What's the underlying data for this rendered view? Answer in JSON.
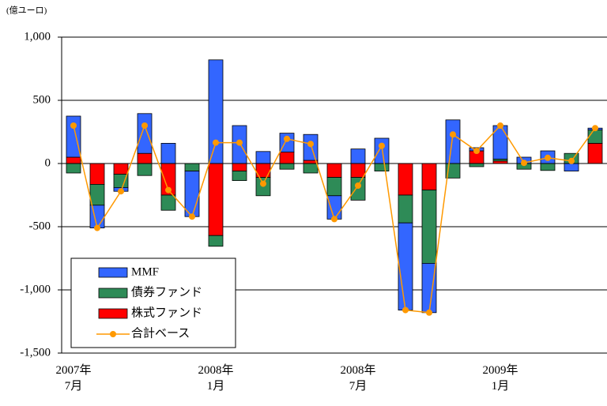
{
  "chart_data": {
    "type": "bar",
    "unit_label": "(億ユーロ)",
    "categories": [
      "2007年\n7月",
      null,
      null,
      null,
      null,
      null,
      "2008年\n1月",
      null,
      null,
      null,
      null,
      null,
      "2008年\n7月",
      null,
      null,
      null,
      null,
      null,
      "2009年\n1月",
      null,
      null,
      null,
      null
    ],
    "series": [
      {
        "name": "MMF",
        "color": "#3366ff",
        "values": [
          325,
          -180,
          -30,
          315,
          160,
          -360,
          820,
          300,
          95,
          150,
          205,
          -185,
          115,
          200,
          -690,
          -390,
          345,
          25,
          265,
          50,
          100,
          -60,
          15
        ]
      },
      {
        "name": "債券ファンド",
        "color": "#2e8b57",
        "values": [
          -75,
          -165,
          -105,
          -95,
          -120,
          -60,
          -85,
          -75,
          -145,
          -45,
          -75,
          -145,
          -180,
          -60,
          -220,
          -580,
          -115,
          -25,
          15,
          -45,
          -55,
          80,
          105
        ]
      },
      {
        "name": "株式ファンド",
        "color": "#ff0000",
        "values": [
          50,
          -165,
          -85,
          80,
          -250,
          0,
          -570,
          -60,
          -110,
          90,
          25,
          -110,
          -110,
          0,
          -250,
          -210,
          0,
          100,
          20,
          0,
          0,
          0,
          160
        ]
      },
      {
        "name": "合計ベース",
        "color": "#ff9900",
        "type": "line",
        "values": [
          300,
          -510,
          -220,
          300,
          -210,
          -420,
          165,
          165,
          -160,
          195,
          155,
          -440,
          -175,
          140,
          -1160,
          -1180,
          230,
          100,
          300,
          5,
          45,
          20,
          280
        ]
      }
    ],
    "ylim": [
      -1500,
      1000
    ],
    "yticks": [
      {
        "value": -1500,
        "label": "-1,500"
      },
      {
        "value": -1000,
        "label": "-1,000"
      },
      -500,
      0,
      500,
      {
        "value": 1000,
        "label": "1,000"
      }
    ],
    "grid": true,
    "legend": "lower left"
  }
}
